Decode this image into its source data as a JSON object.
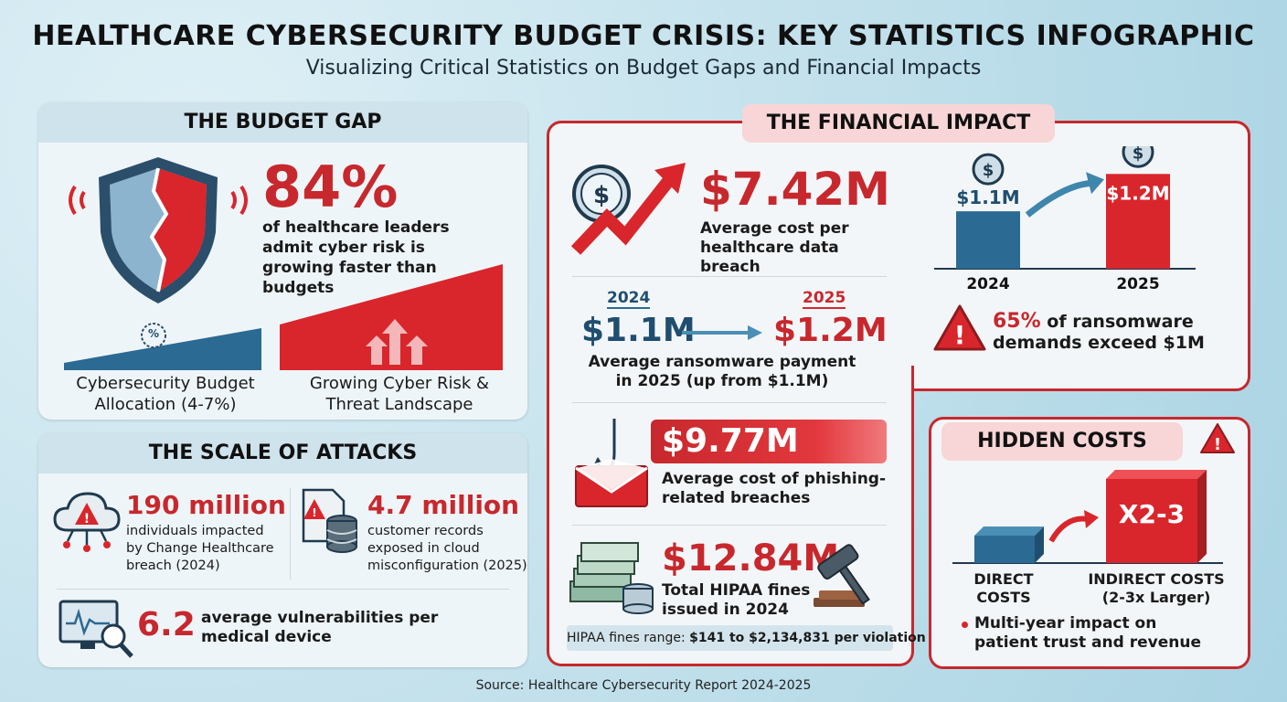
{
  "header": {
    "title": "HEALTHCARE CYBERSECURITY BUDGET CRISIS: KEY STATISTICS INFOGRAPHIC",
    "subtitle": "Visualizing Critical Statistics on Budget Gaps and Financial Impacts"
  },
  "budget_gap": {
    "heading": "THE BUDGET GAP",
    "stat": "84%",
    "stat_text": "of healthcare leaders admit cyber risk is growing faster than budgets",
    "left_label": "Cybersecurity Budget Allocation (4-7%)",
    "right_label": "Growing Cyber Risk & Threat Landscape",
    "percent_badge": "%"
  },
  "scale_of_attacks": {
    "heading": "THE SCALE OF ATTACKS",
    "items": [
      {
        "value": "190 million",
        "text": "individuals impacted by Change Healthcare breach (2024)"
      },
      {
        "value": "4.7 million",
        "text": "customer records exposed in cloud misconfiguration (2025)"
      }
    ],
    "vuln_value": "6.2",
    "vuln_text": "average vulnerabilities per medical device"
  },
  "financial_impact": {
    "heading": "THE FINANCIAL IMPACT",
    "breach_cost": "$7.42M",
    "breach_text": "Average cost per healthcare data breach",
    "ransom_year_from": "2024",
    "ransom_year_to": "2025",
    "ransom_from": "$1.1M",
    "ransom_to": "$1.2M",
    "ransom_text": "Average ransomware payment in 2025 (up from $1.1M)",
    "phishing_cost": "$9.77M",
    "phishing_text": "Average cost of phishing-related breaches",
    "hipaa_total": "$12.84M",
    "hipaa_text": "Total HIPAA fines issued in 2024",
    "hipaa_range_label": "HIPAA fines range: ",
    "hipaa_range_value": "$141 to $2,134,831 per violation",
    "ransom_chart_note_stat": "65%",
    "ransom_chart_note_text": " of ransomware demands exceed $1M"
  },
  "chart_data": {
    "type": "bar",
    "categories": [
      "2024",
      "2025"
    ],
    "values": [
      1.1,
      1.2
    ],
    "value_labels": [
      "$1.1M",
      "$1.2M"
    ],
    "colors": [
      "#2b6a92",
      "#d8262c"
    ],
    "title": "",
    "xlabel": "",
    "ylabel": ""
  },
  "hidden_costs": {
    "heading": "HIDDEN COSTS",
    "multiplier": "X2-3",
    "direct_label": "DIRECT COSTS",
    "indirect_label": "INDIRECT COSTS (2-3x Larger)",
    "bullet": "Multi-year impact on patient trust and revenue"
  },
  "footer": {
    "source": "Source: Healthcare Cybersecurity Report 2024-2025"
  },
  "icons": {
    "dollar_glyph": "$",
    "warning_glyph": "!"
  },
  "colors": {
    "accent_red": "#c7282d",
    "accent_navy": "#1f4e6f",
    "panel_bg": "#eef5f8"
  }
}
